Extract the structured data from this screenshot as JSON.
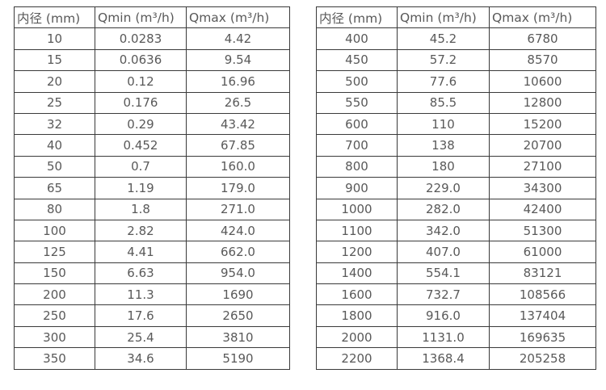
{
  "colors": {
    "background": "#ffffff",
    "border": "#3a3a3a",
    "text": "#595959"
  },
  "left_table": {
    "headers": [
      "内径 (mm)",
      "Qmin (m³/h)",
      "Qmax (m³/h)"
    ],
    "rows": [
      [
        "10",
        "0.0283",
        "4.42"
      ],
      [
        "15",
        "0.0636",
        "9.54"
      ],
      [
        "20",
        "0.12",
        "16.96"
      ],
      [
        "25",
        "0.176",
        "26.5"
      ],
      [
        "32",
        "0.29",
        "43.42"
      ],
      [
        "40",
        "0.452",
        "67.85"
      ],
      [
        "50",
        "0.7",
        "160.0"
      ],
      [
        "65",
        "1.19",
        "179.0"
      ],
      [
        "80",
        "1.8",
        "271.0"
      ],
      [
        "100",
        "2.82",
        "424.0"
      ],
      [
        "125",
        "4.41",
        "662.0"
      ],
      [
        "150",
        "6.63",
        "954.0"
      ],
      [
        "200",
        "11.3",
        "1690"
      ],
      [
        "250",
        "17.6",
        "2650"
      ],
      [
        "300",
        "25.4",
        "3810"
      ],
      [
        "350",
        "34.6",
        "5190"
      ]
    ]
  },
  "right_table": {
    "headers": [
      "内径 (mm)",
      "Qmin (m³/h)",
      "Qmax (m³/h)"
    ],
    "rows": [
      [
        "400",
        "45.2",
        "6780"
      ],
      [
        "450",
        "57.2",
        "8570"
      ],
      [
        "500",
        "77.6",
        "10600"
      ],
      [
        "550",
        "85.5",
        "12800"
      ],
      [
        "600",
        "110",
        "15200"
      ],
      [
        "700",
        "138",
        "20700"
      ],
      [
        "800",
        "180",
        "27100"
      ],
      [
        "900",
        "229.0",
        "34300"
      ],
      [
        "1000",
        "282.0",
        "42400"
      ],
      [
        "1100",
        "342.0",
        "51300"
      ],
      [
        "1200",
        "407.0",
        "61000"
      ],
      [
        "1400",
        "554.1",
        "83121"
      ],
      [
        "1600",
        "732.7",
        "108566"
      ],
      [
        "1800",
        "916.0",
        "137404"
      ],
      [
        "2000",
        "1131.0",
        "169635"
      ],
      [
        "2200",
        "1368.4",
        "205258"
      ]
    ]
  }
}
